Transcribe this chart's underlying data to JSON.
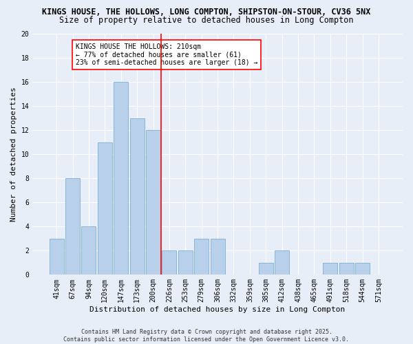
{
  "title1": "KINGS HOUSE, THE HOLLOWS, LONG COMPTON, SHIPSTON-ON-STOUR, CV36 5NX",
  "title2": "Size of property relative to detached houses in Long Compton",
  "xlabel": "Distribution of detached houses by size in Long Compton",
  "ylabel": "Number of detached properties",
  "bar_labels": [
    "41sqm",
    "67sqm",
    "94sqm",
    "120sqm",
    "147sqm",
    "173sqm",
    "200sqm",
    "226sqm",
    "253sqm",
    "279sqm",
    "306sqm",
    "332sqm",
    "359sqm",
    "385sqm",
    "412sqm",
    "438sqm",
    "465sqm",
    "491sqm",
    "518sqm",
    "544sqm",
    "571sqm"
  ],
  "bar_values": [
    3,
    8,
    4,
    11,
    16,
    13,
    12,
    2,
    2,
    3,
    3,
    0,
    0,
    1,
    2,
    0,
    0,
    1,
    1,
    1,
    0
  ],
  "bar_color": "#b8d0ea",
  "bar_edge_color": "#7aafd4",
  "vline_color": "red",
  "vline_x_idx": 6,
  "annotation_text": "KINGS HOUSE THE HOLLOWS: 210sqm\n← 77% of detached houses are smaller (61)\n23% of semi-detached houses are larger (18) →",
  "annotation_box_color": "white",
  "annotation_box_edge_color": "red",
  "ylim": [
    0,
    20
  ],
  "yticks": [
    0,
    2,
    4,
    6,
    8,
    10,
    12,
    14,
    16,
    18,
    20
  ],
  "bg_color": "#e8eef8",
  "plot_bg_color": "#e8eef8",
  "grid_color": "white",
  "footer_text": "Contains HM Land Registry data © Crown copyright and database right 2025.\nContains public sector information licensed under the Open Government Licence v3.0.",
  "title1_fontsize": 8.5,
  "title2_fontsize": 8.5,
  "axis_label_fontsize": 8,
  "tick_fontsize": 7,
  "annotation_fontsize": 7,
  "footer_fontsize": 6
}
